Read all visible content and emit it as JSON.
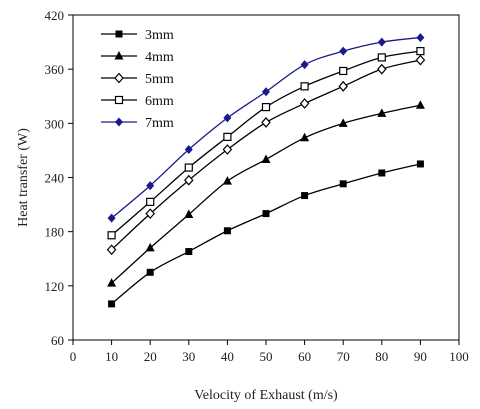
{
  "chart_data": {
    "type": "line",
    "title": "",
    "xlabel": "Velocity of Exhaust (m/s)",
    "ylabel": "Heat transfer (W)",
    "xlim": [
      0,
      100
    ],
    "ylim": [
      60,
      420
    ],
    "x_ticks": [
      0,
      10,
      20,
      30,
      40,
      50,
      60,
      70,
      80,
      90,
      100
    ],
    "y_ticks": [
      60,
      120,
      180,
      240,
      300,
      360,
      420
    ],
    "grid": false,
    "legend_position": "top-left",
    "x": [
      10,
      20,
      30,
      40,
      50,
      60,
      70,
      80,
      90
    ],
    "series": [
      {
        "name": "3mm",
        "marker": "filled-square",
        "color": "#000000",
        "values": [
          100,
          135,
          158,
          181,
          200,
          220,
          233,
          245,
          255
        ]
      },
      {
        "name": "4mm",
        "marker": "filled-triangle",
        "color": "#000000",
        "values": [
          123,
          162,
          199,
          236,
          260,
          284,
          300,
          311,
          320
        ]
      },
      {
        "name": "5mm",
        "marker": "open-diamond",
        "color": "#000000",
        "values": [
          160,
          200,
          237,
          271,
          301,
          322,
          341,
          360,
          370
        ]
      },
      {
        "name": "6mm",
        "marker": "open-square",
        "color": "#000000",
        "values": [
          176,
          213,
          251,
          285,
          318,
          341,
          358,
          373,
          380
        ]
      },
      {
        "name": "7mm",
        "marker": "filled-diamond",
        "color": "#1a1a8c",
        "values": [
          195,
          231,
          271,
          306,
          335,
          365,
          380,
          390,
          395
        ]
      }
    ]
  }
}
